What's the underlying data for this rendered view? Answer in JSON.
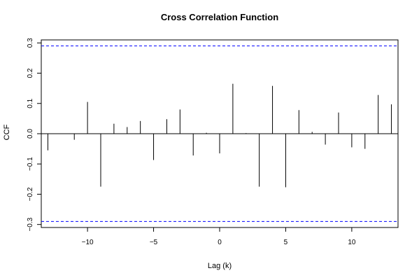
{
  "chart_data": {
    "type": "bar",
    "title": "Cross Correlation Function",
    "xlabel": "Lag (k)",
    "ylabel": "CCF",
    "xlim": [
      -13.5,
      13.5
    ],
    "ylim": [
      -0.31,
      0.31
    ],
    "x_ticks": [
      -10,
      -5,
      0,
      5,
      10
    ],
    "x_tick_labels": [
      "−10",
      "−5",
      "0",
      "5",
      "10"
    ],
    "y_ticks": [
      -0.3,
      -0.2,
      -0.1,
      0.0,
      0.1,
      0.2,
      0.3
    ],
    "y_tick_labels": [
      "−0.3",
      "−0.2",
      "−0.1",
      "0.0",
      "0.1",
      "0.2",
      "0.3"
    ],
    "confidence_limits": [
      0.29,
      -0.29
    ],
    "confidence_color": "#0000ff",
    "bar_color": "#000000",
    "grid": false,
    "lags": [
      -13,
      -12,
      -11,
      -10,
      -9,
      -8,
      -7,
      -6,
      -5,
      -4,
      -3,
      -2,
      -1,
      0,
      1,
      2,
      3,
      4,
      5,
      6,
      7,
      8,
      9,
      10,
      11,
      12,
      13
    ],
    "values": [
      -0.055,
      0.0,
      -0.02,
      0.105,
      -0.175,
      0.033,
      0.022,
      0.042,
      -0.087,
      0.048,
      0.08,
      -0.072,
      0.003,
      -0.065,
      0.165,
      0.002,
      -0.175,
      0.158,
      -0.177,
      0.078,
      0.006,
      -0.036,
      0.07,
      -0.045,
      -0.05,
      0.128,
      0.097
    ]
  }
}
